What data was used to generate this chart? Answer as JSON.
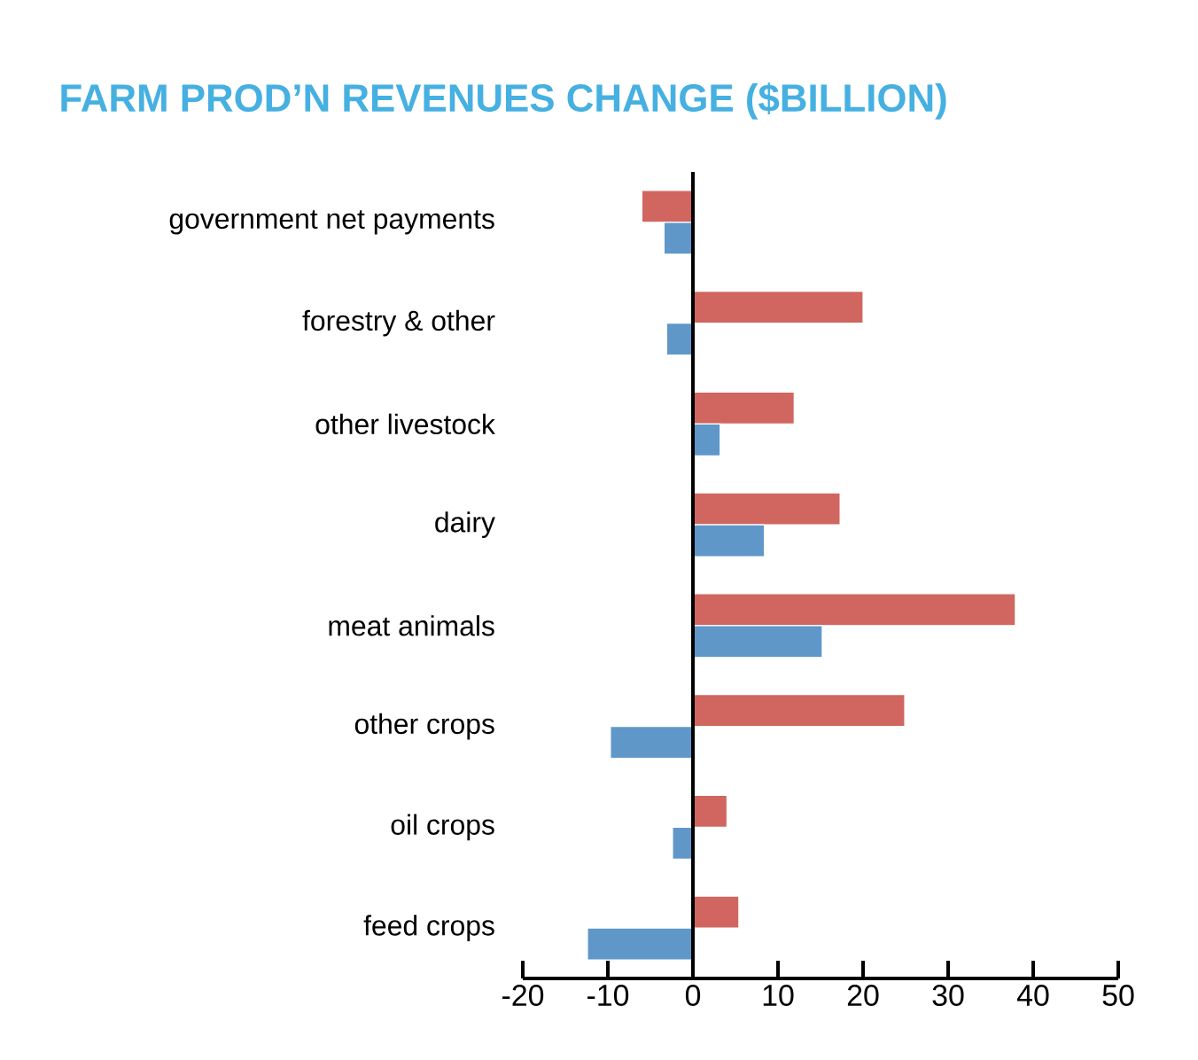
{
  "chart_data": {
    "type": "bar",
    "orientation": "horizontal",
    "title": "FARM PROD’N REVENUES CHANGE ($BILLION)",
    "categories": [
      "government net payments",
      "forestry & other",
      "other livestock",
      "dairy",
      "meat animals",
      "other crops",
      "oil crops",
      "feed crops"
    ],
    "series": [
      {
        "color": "#d0665f",
        "values": [
          -6.0,
          20.0,
          11.9,
          17.3,
          37.9,
          24.9,
          4.0,
          5.4
        ]
      },
      {
        "color": "#6097c9",
        "values": [
          -3.4,
          -3.1,
          3.2,
          8.4,
          15.2,
          -9.7,
          -2.4,
          -12.4
        ]
      }
    ],
    "xlim": [
      -20,
      50
    ],
    "xticks": [
      -20,
      -10,
      0,
      10,
      20,
      30,
      40,
      50
    ]
  }
}
